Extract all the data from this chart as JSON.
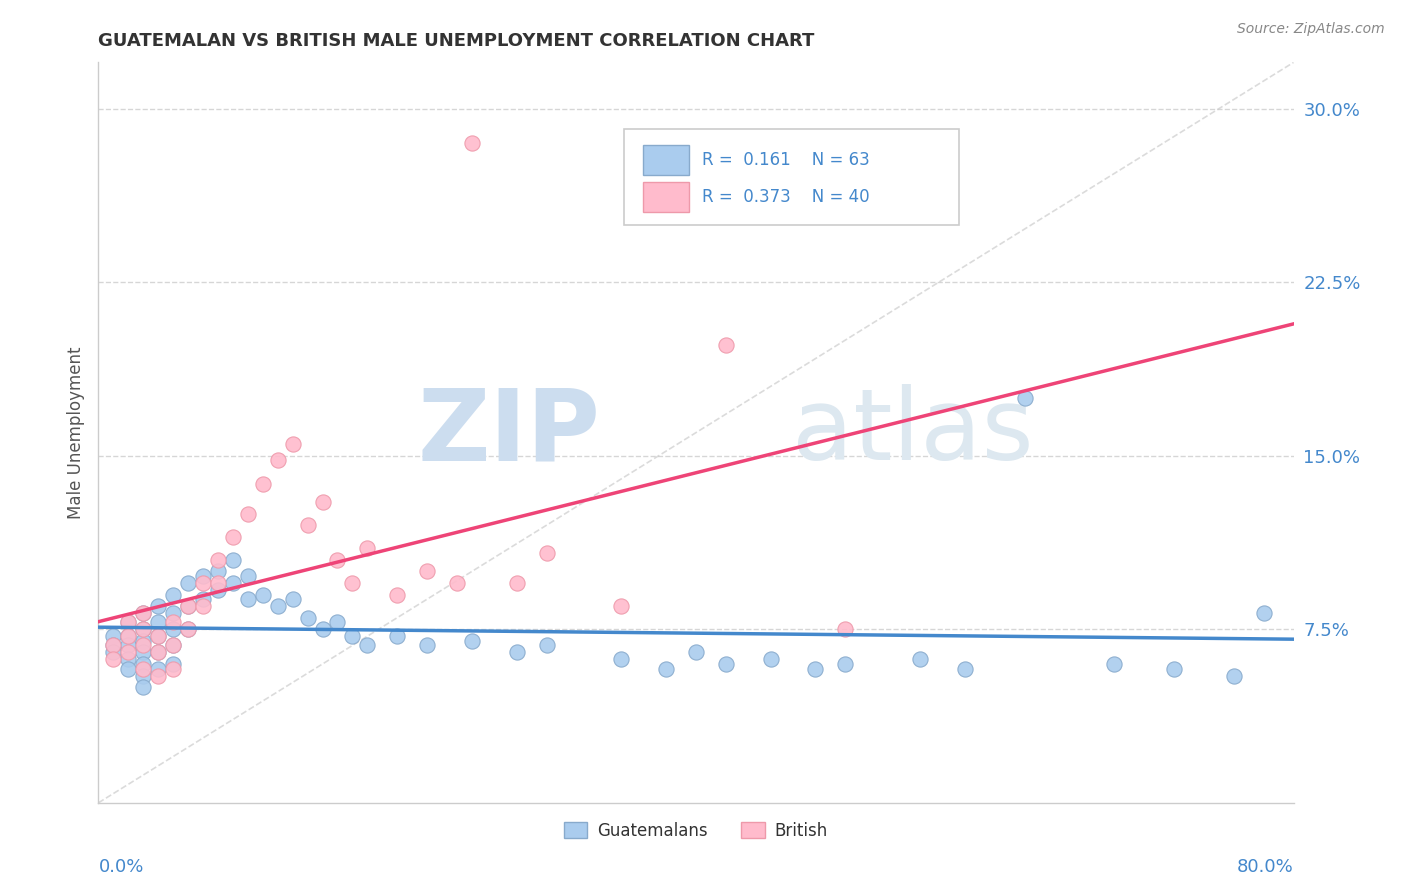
{
  "title": "GUATEMALAN VS BRITISH MALE UNEMPLOYMENT CORRELATION CHART",
  "source": "Source: ZipAtlas.com",
  "ylabel": "Male Unemployment",
  "x_min": 0.0,
  "x_max": 0.8,
  "y_min": 0.0,
  "y_max": 0.32,
  "yticks": [
    0.075,
    0.15,
    0.225,
    0.3
  ],
  "ytick_labels": [
    "7.5%",
    "15.0%",
    "22.5%",
    "30.0%"
  ],
  "guatemalan_color": "#aaccee",
  "guatemalan_edge": "#88aacc",
  "british_color": "#ffbbcc",
  "british_edge": "#ee99aa",
  "trend_guatemalan_color": "#4488cc",
  "trend_british_color": "#ee4477",
  "watermark_color": "#dde8f0",
  "background_color": "#ffffff",
  "grid_color": "#cccccc",
  "legend_color": "#4488cc",
  "title_color": "#333333",
  "source_color": "#888888",
  "ylabel_color": "#555555",
  "guatemalan_x": [
    0.01,
    0.01,
    0.01,
    0.02,
    0.02,
    0.02,
    0.02,
    0.02,
    0.03,
    0.03,
    0.03,
    0.03,
    0.03,
    0.03,
    0.03,
    0.04,
    0.04,
    0.04,
    0.04,
    0.04,
    0.05,
    0.05,
    0.05,
    0.05,
    0.05,
    0.06,
    0.06,
    0.06,
    0.07,
    0.07,
    0.08,
    0.08,
    0.09,
    0.09,
    0.1,
    0.1,
    0.11,
    0.12,
    0.13,
    0.14,
    0.15,
    0.16,
    0.17,
    0.18,
    0.2,
    0.22,
    0.25,
    0.28,
    0.3,
    0.35,
    0.38,
    0.4,
    0.42,
    0.45,
    0.48,
    0.5,
    0.55,
    0.58,
    0.62,
    0.68,
    0.72,
    0.76,
    0.78
  ],
  "guatemalan_y": [
    0.072,
    0.068,
    0.065,
    0.078,
    0.072,
    0.068,
    0.062,
    0.058,
    0.082,
    0.075,
    0.07,
    0.065,
    0.06,
    0.055,
    0.05,
    0.085,
    0.078,
    0.072,
    0.065,
    0.058,
    0.09,
    0.082,
    0.075,
    0.068,
    0.06,
    0.095,
    0.085,
    0.075,
    0.098,
    0.088,
    0.1,
    0.092,
    0.105,
    0.095,
    0.098,
    0.088,
    0.09,
    0.085,
    0.088,
    0.08,
    0.075,
    0.078,
    0.072,
    0.068,
    0.072,
    0.068,
    0.07,
    0.065,
    0.068,
    0.062,
    0.058,
    0.065,
    0.06,
    0.062,
    0.058,
    0.06,
    0.062,
    0.058,
    0.175,
    0.06,
    0.058,
    0.055,
    0.082
  ],
  "british_x": [
    0.01,
    0.01,
    0.02,
    0.02,
    0.02,
    0.03,
    0.03,
    0.03,
    0.03,
    0.04,
    0.04,
    0.04,
    0.05,
    0.05,
    0.05,
    0.06,
    0.06,
    0.07,
    0.07,
    0.08,
    0.08,
    0.09,
    0.1,
    0.11,
    0.12,
    0.13,
    0.14,
    0.15,
    0.16,
    0.17,
    0.18,
    0.2,
    0.22,
    0.24,
    0.25,
    0.28,
    0.3,
    0.35,
    0.42,
    0.5
  ],
  "british_y": [
    0.068,
    0.062,
    0.078,
    0.072,
    0.065,
    0.082,
    0.075,
    0.068,
    0.058,
    0.072,
    0.065,
    0.055,
    0.078,
    0.068,
    0.058,
    0.085,
    0.075,
    0.095,
    0.085,
    0.105,
    0.095,
    0.115,
    0.125,
    0.138,
    0.148,
    0.155,
    0.12,
    0.13,
    0.105,
    0.095,
    0.11,
    0.09,
    0.1,
    0.095,
    0.285,
    0.095,
    0.108,
    0.085,
    0.198,
    0.075
  ]
}
